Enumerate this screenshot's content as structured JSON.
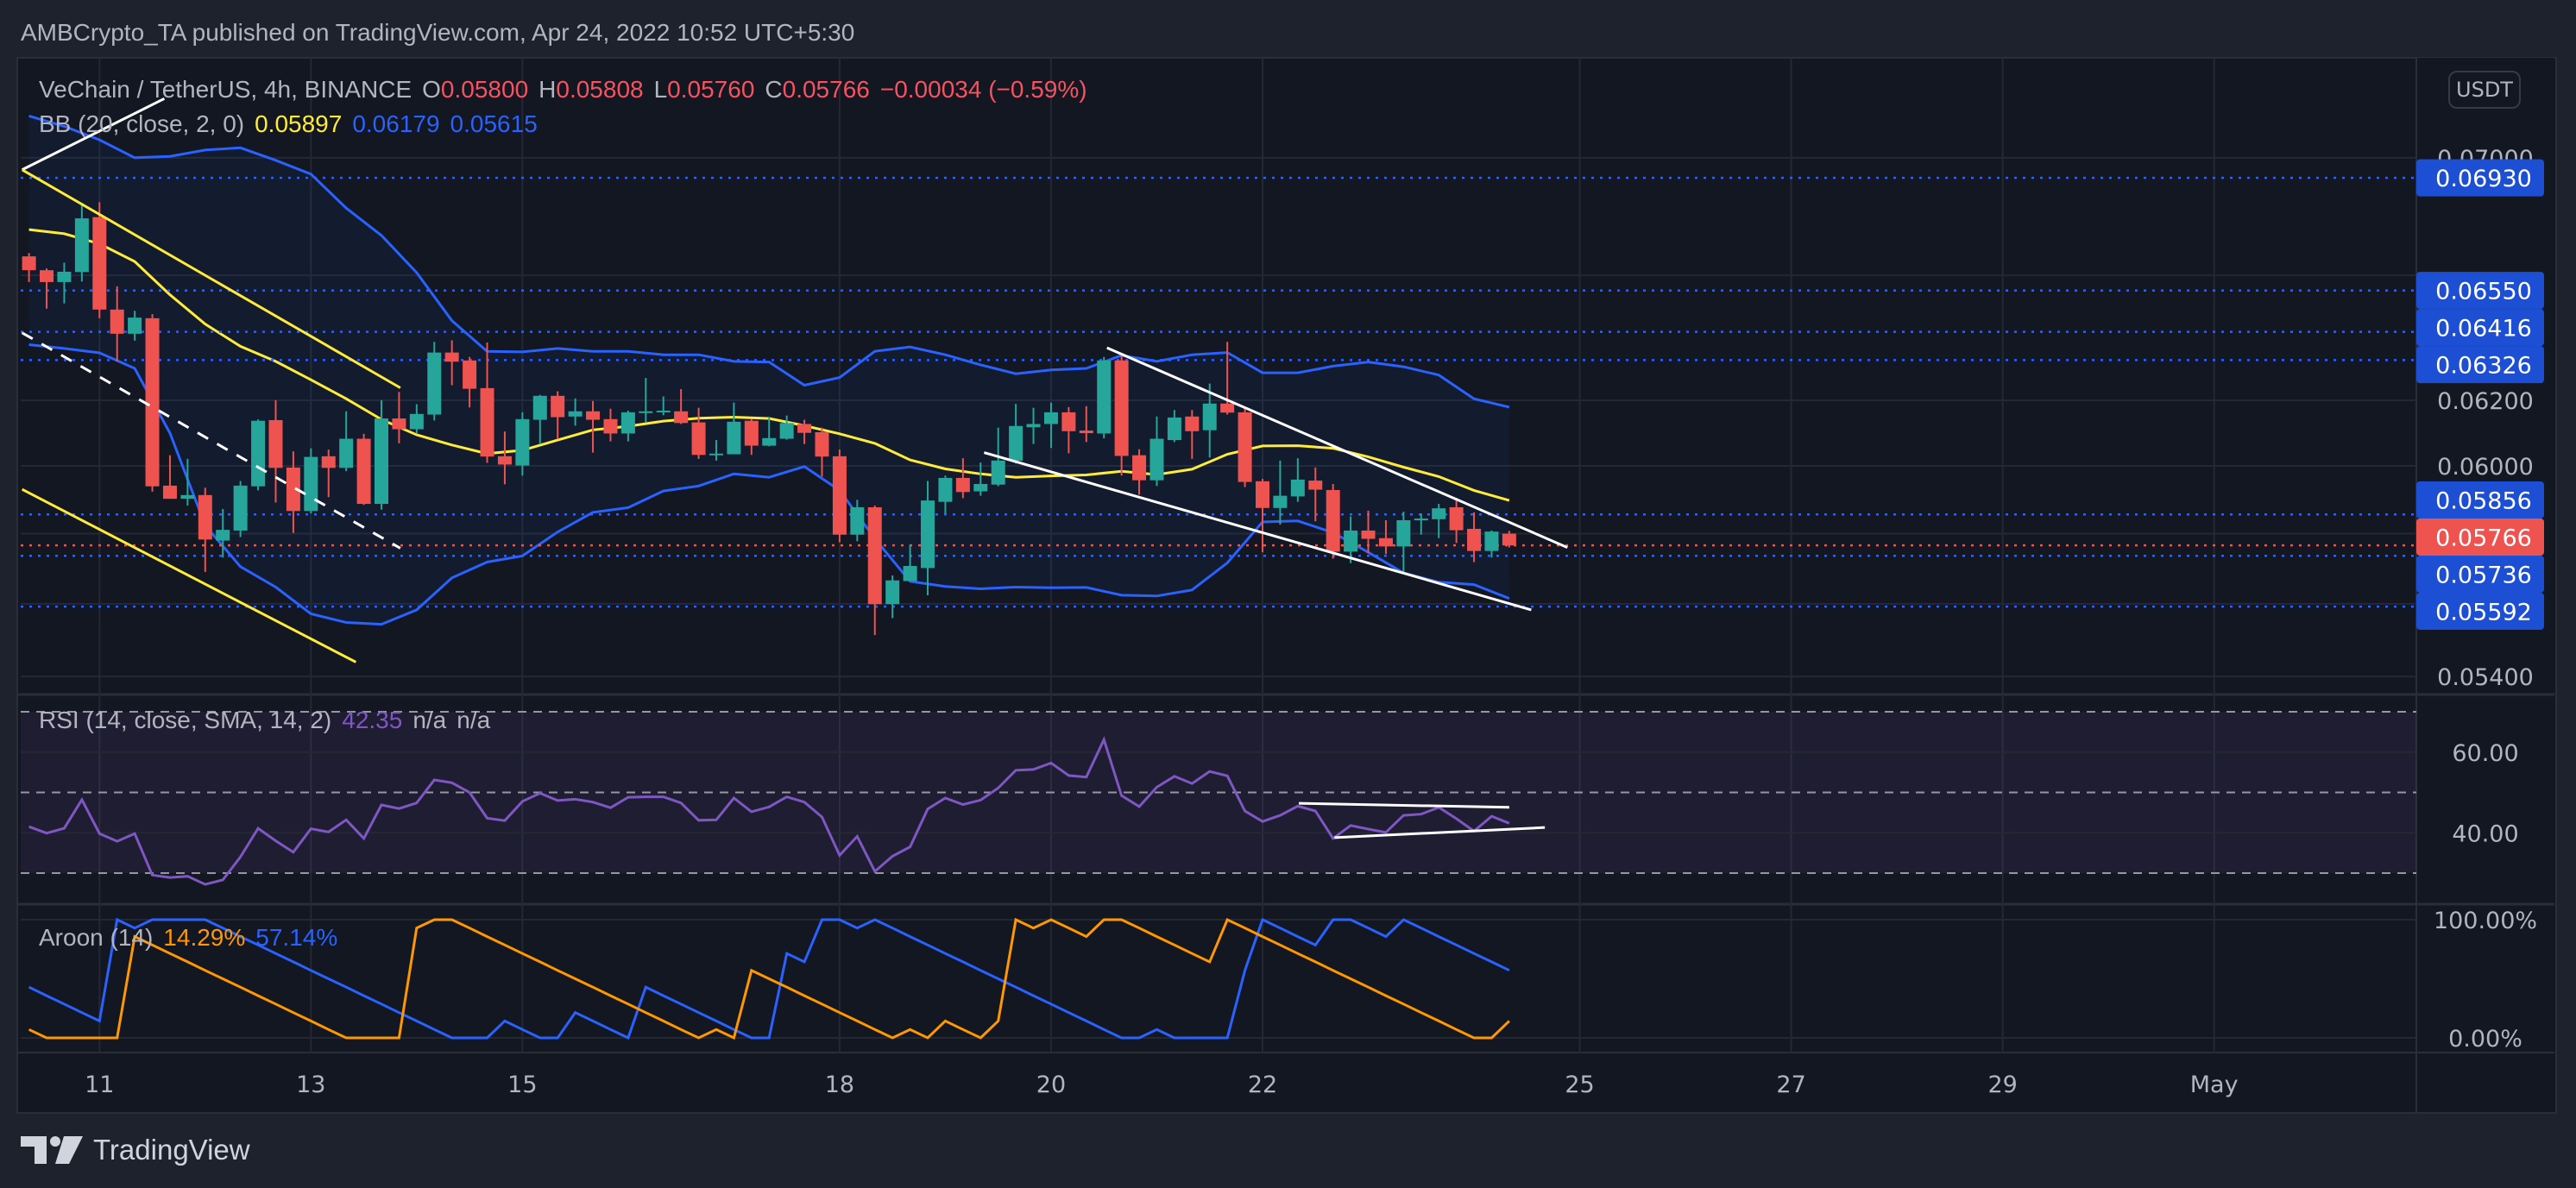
{
  "header": {
    "title": "AMBCrypto_TA published on TradingView.com, Apr 24, 2022 10:52 UTC+5:30"
  },
  "legend": {
    "symbol": "VeChain / TetherUS, 4h, BINANCE",
    "o_label": "O",
    "o": "0.05800",
    "h_label": "H",
    "h": "0.05808",
    "l_label": "L",
    "l": "0.05760",
    "c_label": "C",
    "c": "0.05766",
    "change": "−0.00034 (−0.59%)",
    "bb_label": "BB (20, close, 2, 0)",
    "bb_basis": "0.05897",
    "bb_upper": "0.06179",
    "bb_lower": "0.05615",
    "rsi_label": "RSI (14, close, SMA, 14, 2)",
    "rsi_value": "42.35",
    "rsi_na1": "n/a",
    "rsi_na2": "n/a",
    "aroon_label": "Aroon (14)",
    "aroon_up": "14.29%",
    "aroon_down": "57.14%"
  },
  "currency_button": "USDT",
  "branding": {
    "logo_text": "TradingView"
  },
  "colors": {
    "up": "#26a69a",
    "down": "#ef5350",
    "bb_band": "#2962ff",
    "bb_basis": "#ffeb3b",
    "rsi": "#7e57c2",
    "aroon_up": "#ff9800",
    "aroon_down": "#2962ff",
    "level_box": "#1c4fd4",
    "last_price_box": "#ef5350"
  },
  "chart_data": {
    "type": "candlestick",
    "title": "VeChain / TetherUS, 4h, BINANCE",
    "scale": "log",
    "ylim": [
      0.0535,
      0.0722
    ],
    "grid_prices": [
      0.07,
      0.066,
      0.062,
      0.06,
      0.058,
      0.056,
      0.054
    ],
    "price_ticks": [
      {
        "value": 0.07,
        "label": "0.07000"
      },
      {
        "value": 0.062,
        "label": "0.06200"
      },
      {
        "value": 0.06,
        "label": "0.06000"
      },
      {
        "value": 0.054,
        "label": "0.05400"
      }
    ],
    "x_ticks": [
      {
        "label": "11",
        "day": 11
      },
      {
        "label": "13",
        "day": 13
      },
      {
        "label": "15",
        "day": 15
      },
      {
        "label": "18",
        "day": 18
      },
      {
        "label": "20",
        "day": 20
      },
      {
        "label": "22",
        "day": 22
      },
      {
        "label": "25",
        "day": 25
      },
      {
        "label": "27",
        "day": 27
      },
      {
        "label": "29",
        "day": 29
      },
      {
        "label": "May",
        "day": 31
      }
    ],
    "candles_ohlc": [
      [
        0.06663,
        0.06674,
        0.06578,
        0.06617
      ],
      [
        0.06617,
        0.06623,
        0.06491,
        0.06578
      ],
      [
        0.06578,
        0.06642,
        0.06508,
        0.06612
      ],
      [
        0.06611,
        0.06838,
        0.0658,
        0.06791
      ],
      [
        0.06795,
        0.06846,
        0.0646,
        0.06488
      ],
      [
        0.06488,
        0.06564,
        0.06322,
        0.0641
      ],
      [
        0.0641,
        0.06484,
        0.06388,
        0.06462
      ],
      [
        0.0646,
        0.06473,
        0.05923,
        0.05939
      ],
      [
        0.05941,
        0.06032,
        0.05902,
        0.05902
      ],
      [
        0.05902,
        0.06021,
        0.05882,
        0.05913
      ],
      [
        0.05913,
        0.05935,
        0.0569,
        0.05783
      ],
      [
        0.0578,
        0.05872,
        0.05731,
        0.05811
      ],
      [
        0.05809,
        0.05955,
        0.0579,
        0.05941
      ],
      [
        0.05939,
        0.06141,
        0.05927,
        0.06137
      ],
      [
        0.06139,
        0.062,
        0.05891,
        0.05994
      ],
      [
        0.05995,
        0.06044,
        0.05802,
        0.05866
      ],
      [
        0.05866,
        0.06053,
        0.05859,
        0.06027
      ],
      [
        0.06029,
        0.06049,
        0.05907,
        0.05994
      ],
      [
        0.05994,
        0.06166,
        0.05984,
        0.06082
      ],
      [
        0.06082,
        0.06097,
        0.05884,
        0.05887
      ],
      [
        0.05887,
        0.062,
        0.0587,
        0.06144
      ],
      [
        0.06144,
        0.06226,
        0.06068,
        0.06111
      ],
      [
        0.06111,
        0.06188,
        0.06099,
        0.06158
      ],
      [
        0.06156,
        0.06384,
        0.06138,
        0.0635
      ],
      [
        0.0635,
        0.06389,
        0.06247,
        0.06321
      ],
      [
        0.06325,
        0.06336,
        0.06178,
        0.06236
      ],
      [
        0.06238,
        0.06382,
        0.06009,
        0.06028
      ],
      [
        0.06029,
        0.06104,
        0.05945,
        0.06004
      ],
      [
        0.06001,
        0.06163,
        0.05971,
        0.06142
      ],
      [
        0.0614,
        0.06217,
        0.06065,
        0.06214
      ],
      [
        0.06214,
        0.06228,
        0.06081,
        0.06148
      ],
      [
        0.0615,
        0.06206,
        0.06122,
        0.06166
      ],
      [
        0.06166,
        0.06198,
        0.0604,
        0.0614
      ],
      [
        0.06142,
        0.06174,
        0.06074,
        0.06098
      ],
      [
        0.06098,
        0.06168,
        0.06074,
        0.06163
      ],
      [
        0.06163,
        0.0627,
        0.06133,
        0.06166
      ],
      [
        0.06163,
        0.06212,
        0.06154,
        0.06168
      ],
      [
        0.06166,
        0.06235,
        0.06127,
        0.0613
      ],
      [
        0.06132,
        0.06177,
        0.06021,
        0.06033
      ],
      [
        0.06033,
        0.06078,
        0.06016,
        0.06037
      ],
      [
        0.06035,
        0.06193,
        0.06035,
        0.06134
      ],
      [
        0.06137,
        0.06142,
        0.06033,
        0.06061
      ],
      [
        0.06061,
        0.06147,
        0.06059,
        0.06084
      ],
      [
        0.06082,
        0.06153,
        0.06079,
        0.0613
      ],
      [
        0.06127,
        0.0614,
        0.06066,
        0.061
      ],
      [
        0.06102,
        0.06116,
        0.05968,
        0.06028
      ],
      [
        0.06029,
        0.06049,
        0.05775,
        0.05797
      ],
      [
        0.05797,
        0.05899,
        0.05778,
        0.05877
      ],
      [
        0.05877,
        0.05882,
        0.05513,
        0.05599
      ],
      [
        0.05599,
        0.0568,
        0.0556,
        0.05666
      ],
      [
        0.05664,
        0.05768,
        0.05664,
        0.05707
      ],
      [
        0.05701,
        0.05955,
        0.05624,
        0.05897
      ],
      [
        0.05893,
        0.05971,
        0.05859,
        0.05964
      ],
      [
        0.05964,
        0.06023,
        0.05904,
        0.05922
      ],
      [
        0.05924,
        0.0601,
        0.05911,
        0.05946
      ],
      [
        0.05944,
        0.06116,
        0.05939,
        0.06016
      ],
      [
        0.06015,
        0.06189,
        0.06007,
        0.06121
      ],
      [
        0.06117,
        0.06177,
        0.06066,
        0.06127
      ],
      [
        0.06127,
        0.06193,
        0.06054,
        0.06163
      ],
      [
        0.06163,
        0.06179,
        0.06038,
        0.06105
      ],
      [
        0.06107,
        0.06182,
        0.06072,
        0.06099
      ],
      [
        0.06098,
        0.06336,
        0.06083,
        0.06325
      ],
      [
        0.06325,
        0.06347,
        0.05971,
        0.0603
      ],
      [
        0.06032,
        0.0605,
        0.05914,
        0.05957
      ],
      [
        0.05957,
        0.0615,
        0.0594,
        0.06082
      ],
      [
        0.06078,
        0.0617,
        0.06072,
        0.06147
      ],
      [
        0.0615,
        0.0617,
        0.06021,
        0.06105
      ],
      [
        0.06108,
        0.06252,
        0.06025,
        0.0619
      ],
      [
        0.0619,
        0.06384,
        0.06156,
        0.06162
      ],
      [
        0.06163,
        0.06175,
        0.05937,
        0.05952
      ],
      [
        0.05954,
        0.05961,
        0.05746,
        0.05875
      ],
      [
        0.05875,
        0.06016,
        0.05826,
        0.05911
      ],
      [
        0.05909,
        0.06023,
        0.05893,
        0.05959
      ],
      [
        0.05956,
        0.05995,
        0.05836,
        0.05929
      ],
      [
        0.05928,
        0.05946,
        0.05728,
        0.05748
      ],
      [
        0.05748,
        0.0585,
        0.05715,
        0.05809
      ],
      [
        0.05809,
        0.05867,
        0.05743,
        0.05785
      ],
      [
        0.05787,
        0.05839,
        0.05741,
        0.05763
      ],
      [
        0.05763,
        0.05864,
        0.05688,
        0.05839
      ],
      [
        0.0584,
        0.05859,
        0.05797,
        0.05844
      ],
      [
        0.05842,
        0.05887,
        0.05787,
        0.05874
      ],
      [
        0.05877,
        0.05905,
        0.05773,
        0.0581
      ],
      [
        0.05814,
        0.05862,
        0.05718,
        0.0575
      ],
      [
        0.0575,
        0.05809,
        0.05731,
        0.05806
      ],
      [
        0.058,
        0.05808,
        0.0576,
        0.05766
      ]
    ],
    "bollinger": {
      "sample_every": 2,
      "upper": [
        0.07148,
        0.07111,
        0.07063,
        0.07,
        0.07005,
        0.07027,
        0.07035,
        0.06991,
        0.06943,
        0.06826,
        0.06733,
        0.06609,
        0.06452,
        0.06354,
        0.06352,
        0.06363,
        0.06354,
        0.06354,
        0.06343,
        0.06343,
        0.06322,
        0.0632,
        0.06247,
        0.06271,
        0.06354,
        0.06368,
        0.06343,
        0.06311,
        0.06283,
        0.06295,
        0.063,
        0.06341,
        0.06322,
        0.06343,
        0.0635,
        0.06286,
        0.06286,
        0.06307,
        0.0632,
        0.06305,
        0.06279,
        0.06205,
        0.06179
      ],
      "basis": [
        0.06753,
        0.06739,
        0.06705,
        0.06646,
        0.06536,
        0.06441,
        0.0637,
        0.06322,
        0.06264,
        0.06205,
        0.06141,
        0.06094,
        0.06063,
        0.06037,
        0.06047,
        0.06078,
        0.06109,
        0.0612,
        0.06136,
        0.06145,
        0.06148,
        0.06144,
        0.06122,
        0.06097,
        0.06068,
        0.06018,
        0.05991,
        0.05976,
        0.05966,
        0.0597,
        0.05973,
        0.05984,
        0.05974,
        0.0599,
        0.06035,
        0.0606,
        0.06061,
        0.06053,
        0.06027,
        0.05996,
        0.05968,
        0.05927,
        0.05897
      ],
      "lower": [
        0.06375,
        0.06363,
        0.06349,
        0.063,
        0.06099,
        0.05824,
        0.05705,
        0.05647,
        0.05572,
        0.05548,
        0.05543,
        0.05583,
        0.05673,
        0.05718,
        0.05736,
        0.05805,
        0.05862,
        0.05876,
        0.05925,
        0.0594,
        0.05976,
        0.05966,
        0.05998,
        0.05927,
        0.05785,
        0.05663,
        0.05649,
        0.05642,
        0.05647,
        0.05645,
        0.05646,
        0.05624,
        0.05622,
        0.05639,
        0.05716,
        0.05834,
        0.05837,
        0.05803,
        0.05746,
        0.05687,
        0.05661,
        0.05654,
        0.05615
      ]
    },
    "price_levels": [
      {
        "value": 0.0693,
        "label": "0.06930",
        "kind": "level"
      },
      {
        "value": 0.0655,
        "label": "0.06550",
        "kind": "level"
      },
      {
        "value": 0.06416,
        "label": "0.06416",
        "kind": "level"
      },
      {
        "value": 0.06326,
        "label": "0.06326",
        "kind": "level"
      },
      {
        "value": 0.05856,
        "label": "0.05856",
        "kind": "level"
      },
      {
        "value": 0.05766,
        "label": "0.05766",
        "kind": "last"
      },
      {
        "value": 0.05736,
        "label": "0.05736",
        "kind": "level"
      },
      {
        "value": 0.05592,
        "label": "0.05592",
        "kind": "level"
      }
    ],
    "drawings": [
      {
        "name": "trendline-top-left",
        "color": "#ffffff",
        "style": "solid",
        "from": [
          -0.39,
          0.06958
        ],
        "to": [
          7.68,
          0.0721
        ]
      },
      {
        "name": "channel-upper-line",
        "color": "#ffeb3b",
        "style": "solid",
        "from": [
          -0.39,
          0.06958
        ],
        "to": [
          21.07,
          0.06239
        ]
      },
      {
        "name": "channel-lower-line",
        "color": "#ffeb3b",
        "style": "solid",
        "from": [
          -0.39,
          0.0593
        ],
        "to": [
          18.55,
          0.05439
        ]
      },
      {
        "name": "channel-mid-dashed-line",
        "color": "#ffffff",
        "style": "dashed",
        "from": [
          -0.39,
          0.06413
        ],
        "to": [
          21.07,
          0.05758
        ]
      },
      {
        "name": "wedge-upper-line",
        "color": "#ffffff",
        "style": "solid",
        "from": [
          61.17,
          0.06365
        ],
        "to": [
          87.3,
          0.0576
        ]
      },
      {
        "name": "wedge-lower-line",
        "color": "#ffffff",
        "style": "solid",
        "from": [
          54.2,
          0.0604
        ],
        "to": [
          85.25,
          0.05583
        ]
      }
    ],
    "rsi": {
      "upper_band": 70,
      "middle": 50,
      "lower_band": 30,
      "ticks": [
        {
          "value": 60,
          "label": "60.00"
        },
        {
          "value": 40,
          "label": "40.00"
        }
      ],
      "values": [
        41.5,
        39.9,
        41.1,
        48.2,
        39.8,
        37.9,
        39.8,
        29.5,
        28.9,
        29.2,
        27.2,
        28.3,
        34.0,
        41.1,
        38.0,
        35.2,
        41.0,
        40.2,
        43.2,
        38.6,
        46.9,
        46.0,
        47.4,
        53.1,
        52.4,
        50.0,
        43.6,
        43.0,
        47.8,
        49.8,
        48.0,
        48.3,
        47.6,
        46.2,
        48.8,
        48.9,
        48.9,
        47.4,
        43.1,
        43.2,
        48.6,
        45.2,
        46.4,
        48.9,
        47.6,
        43.9,
        34.4,
        39.1,
        30.4,
        34.2,
        36.5,
        45.9,
        48.6,
        47.0,
        48.1,
        51.1,
        55.5,
        55.7,
        57.3,
        54.2,
        53.8,
        63.1,
        49.2,
        46.5,
        51.3,
        54.0,
        52.2,
        55.2,
        54.1,
        45.4,
        42.8,
        44.3,
        46.6,
        45.4,
        38.6,
        41.8,
        40.9,
        40.1,
        44.3,
        44.6,
        46.3,
        43.5,
        40.4,
        44.1,
        42.35
      ],
      "drawings": [
        {
          "name": "rsi-upper-trendline",
          "from": [
            72.06,
            47.3
          ],
          "to": [
            84.0,
            46.3
          ]
        },
        {
          "name": "rsi-lower-trendline",
          "from": [
            74.08,
            38.8
          ],
          "to": [
            86.02,
            41.3
          ]
        }
      ]
    },
    "aroon": {
      "ticks": [
        {
          "value": 100,
          "label": "100.00%"
        },
        {
          "value": 0,
          "label": "0.00%"
        }
      ],
      "up": [
        7.1,
        0,
        0,
        0,
        0,
        0,
        85.7,
        78.6,
        71.4,
        64.3,
        57.1,
        50,
        42.9,
        35.7,
        28.6,
        21.4,
        14.3,
        7.1,
        0,
        0,
        0,
        0,
        92.9,
        100,
        100,
        92.9,
        85.7,
        78.6,
        71.4,
        64.3,
        57.1,
        50,
        42.9,
        35.7,
        28.6,
        21.4,
        14.3,
        7.1,
        0,
        7.1,
        0,
        57.1,
        50,
        42.9,
        35.7,
        28.6,
        21.4,
        14.3,
        7.1,
        0,
        7.1,
        0,
        14.3,
        7.1,
        0,
        14.3,
        100,
        92.9,
        100,
        92.9,
        85.7,
        100,
        100,
        92.9,
        85.7,
        78.6,
        71.4,
        64.3,
        100,
        92.9,
        85.7,
        78.6,
        71.4,
        64.3,
        57.1,
        50,
        42.9,
        35.7,
        28.6,
        21.4,
        14.3,
        7.1,
        0,
        0,
        14.29
      ],
      "down": [
        42.9,
        35.7,
        28.6,
        21.4,
        14.3,
        100,
        92.9,
        100,
        100,
        100,
        100,
        92.9,
        85.7,
        78.6,
        71.4,
        64.3,
        57.1,
        50,
        42.9,
        35.7,
        28.6,
        21.4,
        14.3,
        7.1,
        0,
        0,
        0,
        14.3,
        7.1,
        0,
        0,
        21.4,
        14.3,
        7.1,
        0,
        42.9,
        35.7,
        28.6,
        21.4,
        14.3,
        7.1,
        0,
        0,
        71.4,
        64.3,
        100,
        100,
        92.9,
        100,
        92.9,
        85.7,
        78.6,
        71.4,
        64.3,
        57.1,
        50,
        42.9,
        35.7,
        28.6,
        21.4,
        14.3,
        7.1,
        0,
        0,
        7.1,
        0,
        0,
        0,
        0,
        57.1,
        100,
        92.9,
        85.7,
        78.6,
        100,
        100,
        92.9,
        85.7,
        100,
        92.9,
        85.7,
        78.6,
        71.4,
        64.3,
        57.14
      ]
    }
  }
}
